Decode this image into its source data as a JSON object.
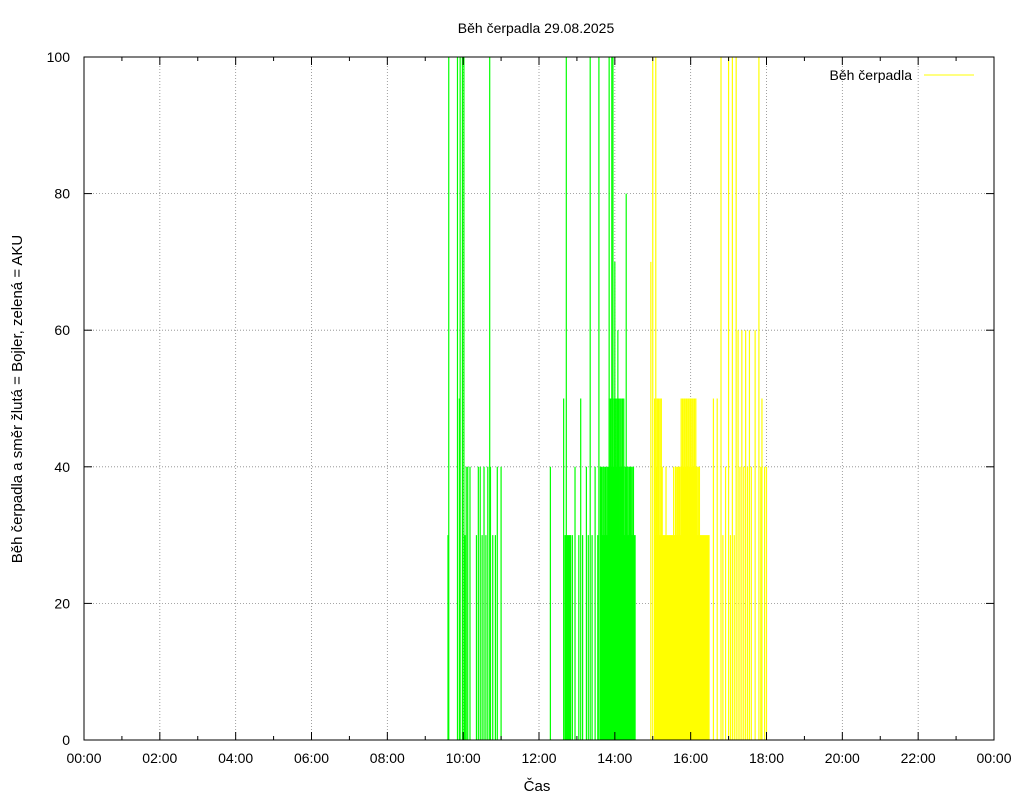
{
  "chart_data": {
    "type": "line",
    "title": "Běh čerpadla 29.08.2025",
    "xlabel": "Čas",
    "ylabel": "Běh čerpadla a směr žlutá = Bojler, zelená = AKU",
    "xlim": [
      0,
      24
    ],
    "ylim": [
      0,
      100
    ],
    "x_tick_values": [
      0,
      2,
      4,
      6,
      8,
      10,
      12,
      14,
      16,
      18,
      20,
      22,
      24
    ],
    "x_tick_labels": [
      "00:00",
      "02:00",
      "04:00",
      "06:00",
      "08:00",
      "10:00",
      "12:00",
      "14:00",
      "16:00",
      "18:00",
      "20:00",
      "22:00",
      "00:00"
    ],
    "y_tick_values": [
      0,
      20,
      40,
      60,
      80,
      100
    ],
    "y_tick_labels": [
      "0",
      "20",
      "40",
      "60",
      "80",
      "100"
    ],
    "grid": true,
    "legend": {
      "position": "top-right",
      "entries": [
        {
          "label": "Běh čerpadla",
          "color": "#ffff00"
        }
      ]
    },
    "series": [
      {
        "name": "AKU",
        "color": "#00ff00",
        "filled_blocks": [
          {
            "x_start": 12.67,
            "x_end": 12.85,
            "value": 30
          },
          {
            "x_start": 13.65,
            "x_end": 14.55,
            "value": 30
          }
        ],
        "spikes": [
          [
            9.6,
            30
          ],
          [
            9.62,
            100
          ],
          [
            9.85,
            100
          ],
          [
            9.9,
            50
          ],
          [
            9.92,
            100
          ],
          [
            9.98,
            100
          ],
          [
            10.02,
            100
          ],
          [
            10.05,
            30
          ],
          [
            10.08,
            40
          ],
          [
            10.12,
            40
          ],
          [
            10.18,
            40
          ],
          [
            10.35,
            30
          ],
          [
            10.4,
            40
          ],
          [
            10.45,
            40
          ],
          [
            10.5,
            30
          ],
          [
            10.55,
            40
          ],
          [
            10.6,
            30
          ],
          [
            10.65,
            40
          ],
          [
            10.7,
            100
          ],
          [
            10.72,
            40
          ],
          [
            10.78,
            30
          ],
          [
            10.85,
            30
          ],
          [
            10.9,
            40
          ],
          [
            11.0,
            40
          ],
          [
            12.3,
            40
          ],
          [
            12.65,
            50
          ],
          [
            12.72,
            100
          ],
          [
            12.88,
            30
          ],
          [
            12.95,
            40
          ],
          [
            13.05,
            30
          ],
          [
            13.1,
            50
          ],
          [
            13.15,
            30
          ],
          [
            13.25,
            40
          ],
          [
            13.3,
            30
          ],
          [
            13.35,
            100
          ],
          [
            13.4,
            30
          ],
          [
            13.48,
            40
          ],
          [
            13.55,
            30
          ],
          [
            13.58,
            100
          ],
          [
            13.62,
            40
          ],
          [
            13.85,
            100
          ],
          [
            13.92,
            100
          ],
          [
            13.95,
            100
          ],
          [
            14.0,
            70
          ],
          [
            14.08,
            60
          ],
          [
            14.2,
            40
          ],
          [
            14.3,
            80
          ],
          [
            14.4,
            40
          ]
        ],
        "plateaus": [
          {
            "x_start": 13.85,
            "x_end": 14.25,
            "value": 50
          },
          {
            "x_start": 13.65,
            "x_end": 14.5,
            "value": 40
          }
        ]
      },
      {
        "name": "Bojler",
        "color": "#ffff00",
        "filled_blocks": [
          {
            "x_start": 15.05,
            "x_end": 16.5,
            "value": 30
          }
        ],
        "spikes": [
          [
            14.95,
            70
          ],
          [
            15.0,
            100
          ],
          [
            15.08,
            100
          ],
          [
            15.1,
            40
          ],
          [
            15.15,
            50
          ],
          [
            15.25,
            40
          ],
          [
            15.35,
            40
          ],
          [
            15.55,
            40
          ],
          [
            15.7,
            40
          ],
          [
            15.85,
            40
          ],
          [
            16.05,
            40
          ],
          [
            16.2,
            40
          ],
          [
            16.6,
            50
          ],
          [
            16.7,
            50
          ],
          [
            16.8,
            100
          ],
          [
            16.85,
            30
          ],
          [
            16.92,
            40
          ],
          [
            17.0,
            100
          ],
          [
            17.05,
            30
          ],
          [
            17.1,
            100
          ],
          [
            17.15,
            30
          ],
          [
            17.2,
            100
          ],
          [
            17.25,
            60
          ],
          [
            17.3,
            40
          ],
          [
            17.35,
            60
          ],
          [
            17.4,
            40
          ],
          [
            17.45,
            60
          ],
          [
            17.5,
            40
          ],
          [
            17.55,
            60
          ],
          [
            17.6,
            40
          ],
          [
            17.7,
            60
          ],
          [
            17.8,
            100
          ],
          [
            17.85,
            40
          ],
          [
            17.88,
            50
          ],
          [
            17.95,
            40
          ],
          [
            18.0,
            40
          ]
        ],
        "plateaus": [
          {
            "x_start": 15.75,
            "x_end": 16.15,
            "value": 50
          },
          {
            "x_start": 15.6,
            "x_end": 16.25,
            "value": 40
          },
          {
            "x_start": 15.05,
            "x_end": 15.25,
            "value": 50
          }
        ]
      }
    ]
  }
}
